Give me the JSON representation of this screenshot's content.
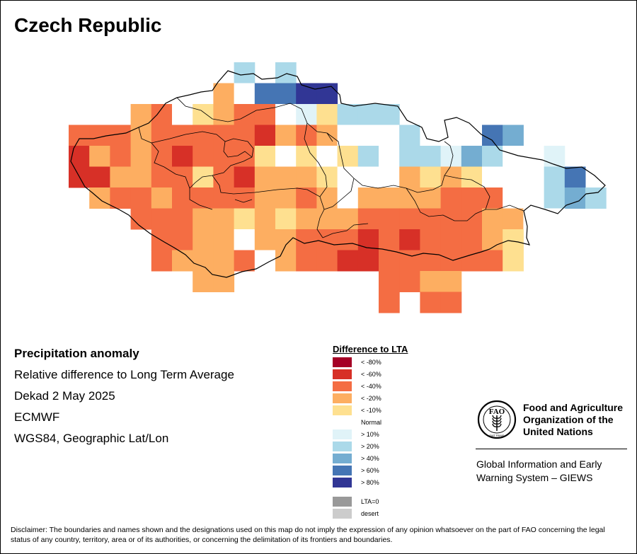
{
  "title": "Czech Republic",
  "info": {
    "heading": "Precipitation anomaly",
    "line1": "Relative difference to Long Term Average",
    "line2": "Dekad 2 May 2025",
    "line3": "ECMWF",
    "line4": "WGS84, Geographic Lat/Lon"
  },
  "legend": {
    "title": "Difference to LTA",
    "items": [
      {
        "label": "< -80%",
        "color": "#a50026"
      },
      {
        "label": "< -60%",
        "color": "#d73027"
      },
      {
        "label": "< -40%",
        "color": "#f46d43"
      },
      {
        "label": "< -20%",
        "color": "#fdae61"
      },
      {
        "label": "< -10%",
        "color": "#fee090"
      },
      {
        "label": "Normal",
        "color": "#ffffff"
      },
      {
        "label": "> 10%",
        "color": "#e0f3f8"
      },
      {
        "label": "> 20%",
        "color": "#abd9e9"
      },
      {
        "label": "> 40%",
        "color": "#74add1"
      },
      {
        "label": "> 60%",
        "color": "#4575b4"
      },
      {
        "label": "> 80%",
        "color": "#313695"
      },
      {
        "label": "LTA=0",
        "color": "#999999"
      },
      {
        "label": "desert",
        "color": "#cccccc"
      }
    ]
  },
  "fao": {
    "name_line1": "Food and Agriculture",
    "name_line2": "Organization of the",
    "name_line3": "United Nations",
    "logo_letters": "FAO",
    "logo_motto": "FIAT PANIS",
    "giews_line1": "Global Information and Early",
    "giews_line2": "Warning System – GIEWS"
  },
  "disclaimer": "Disclaimer: The boundaries and names shown and the designations used on this map do not imply the expression of any opinion whatsoever on the part of FAO concerning the legal status of any country, territory, area or of its authorities, or concerning the delimitation of its frontiers and boundaries.",
  "anomaly_grid": {
    "note_classes": "class index: 1=<-80%,2=<-60%,3=<-40%,4=<-20%,5=<-10%,6=Normal,7=>10%,8=>20%,9=>40%,10=>60%,11=>80%,0=no data",
    "rows": [
      [
        0,
        0,
        0,
        0,
        0,
        0,
        0,
        0,
        8,
        0,
        8,
        0,
        0,
        0,
        0,
        0,
        0,
        0,
        0,
        0,
        0,
        0,
        0,
        0,
        0,
        0
      ],
      [
        0,
        0,
        0,
        0,
        0,
        0,
        0,
        4,
        6,
        10,
        10,
        11,
        11,
        0,
        0,
        0,
        0,
        0,
        0,
        0,
        0,
        0,
        0,
        0,
        0,
        0
      ],
      [
        0,
        0,
        0,
        4,
        3,
        6,
        5,
        4,
        3,
        3,
        6,
        7,
        5,
        8,
        8,
        8,
        0,
        0,
        0,
        0,
        0,
        0,
        0,
        0,
        0,
        0
      ],
      [
        3,
        3,
        3,
        4,
        3,
        3,
        3,
        3,
        3,
        2,
        4,
        3,
        4,
        6,
        6,
        6,
        8,
        6,
        6,
        6,
        10,
        9,
        0,
        0,
        0,
        0
      ],
      [
        2,
        4,
        3,
        4,
        3,
        2,
        3,
        3,
        3,
        5,
        6,
        5,
        6,
        5,
        8,
        6,
        8,
        8,
        7,
        9,
        8,
        6,
        6,
        7,
        0,
        0
      ],
      [
        2,
        2,
        4,
        4,
        3,
        3,
        5,
        3,
        2,
        4,
        4,
        4,
        5,
        6,
        6,
        6,
        4,
        5,
        4,
        5,
        6,
        6,
        6,
        8,
        10,
        0
      ],
      [
        0,
        4,
        3,
        3,
        4,
        3,
        3,
        3,
        3,
        4,
        4,
        3,
        4,
        6,
        4,
        4,
        4,
        4,
        3,
        3,
        3,
        6,
        6,
        8,
        9,
        8
      ],
      [
        0,
        0,
        0,
        3,
        3,
        3,
        4,
        4,
        5,
        4,
        5,
        4,
        4,
        4,
        3,
        3,
        3,
        3,
        3,
        3,
        4,
        4,
        6,
        6,
        0,
        0
      ],
      [
        0,
        0,
        0,
        0,
        3,
        3,
        4,
        4,
        6,
        4,
        4,
        3,
        3,
        3,
        2,
        3,
        2,
        3,
        3,
        3,
        4,
        5,
        0,
        0,
        0,
        0
      ],
      [
        0,
        0,
        0,
        0,
        3,
        4,
        4,
        4,
        3,
        6,
        4,
        3,
        3,
        2,
        2,
        3,
        3,
        3,
        3,
        3,
        3,
        5,
        0,
        0,
        0,
        0
      ],
      [
        0,
        0,
        0,
        0,
        0,
        0,
        4,
        4,
        0,
        0,
        0,
        0,
        0,
        0,
        0,
        3,
        3,
        4,
        4,
        0,
        0,
        0,
        0,
        0,
        0,
        0
      ],
      [
        0,
        0,
        0,
        0,
        0,
        0,
        0,
        0,
        0,
        0,
        0,
        0,
        0,
        0,
        0,
        3,
        0,
        3,
        3,
        0,
        0,
        0,
        0,
        0,
        0,
        0
      ]
    ]
  }
}
